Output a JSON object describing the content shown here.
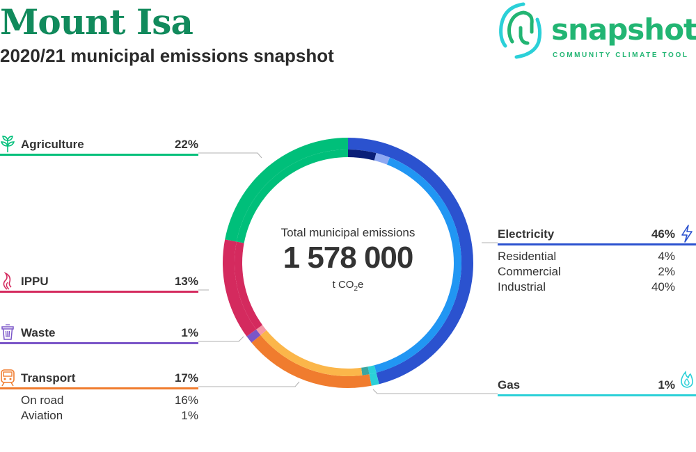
{
  "header": {
    "title": "Mount Isa",
    "subtitle": "2020/21 municipal emissions snapshot"
  },
  "logo": {
    "wordmark": "snapshot",
    "tagline": "COMMUNITY CLIMATE TOOL",
    "color": "#22b573"
  },
  "center": {
    "label": "Total municipal emissions",
    "value": "1 578 000",
    "unit_prefix": "t CO",
    "unit_sub": "2",
    "unit_suffix": "e"
  },
  "categories": {
    "agriculture": {
      "label": "Agriculture",
      "pct": "22%",
      "color": "#00bf7a",
      "icon": "sprout-icon"
    },
    "ippu": {
      "label": "IPPU",
      "pct": "13%",
      "color": "#d42a5e",
      "icon": "flame-swirl-icon"
    },
    "waste": {
      "label": "Waste",
      "pct": "1%",
      "color": "#7b56c8",
      "icon": "trash-bin-icon"
    },
    "transport": {
      "label": "Transport",
      "pct": "17%",
      "color": "#f07c2e",
      "icon": "train-icon",
      "subs": [
        {
          "label": "On road",
          "pct": "16%"
        },
        {
          "label": "Aviation",
          "pct": "1%"
        }
      ]
    },
    "electricity": {
      "label": "Electricity",
      "pct": "46%",
      "color": "#2b52cf",
      "icon": "lightning-icon",
      "subs": [
        {
          "label": "Residential",
          "pct": "4%"
        },
        {
          "label": "Commercial",
          "pct": "2%"
        },
        {
          "label": "Industrial",
          "pct": "40%"
        }
      ]
    },
    "gas": {
      "label": "Gas",
      "pct": "1%",
      "color": "#2bd0d8",
      "icon": "gas-flame-icon"
    }
  },
  "chart_data": {
    "type": "pie",
    "variant": "donut",
    "unit": "t CO2e",
    "total": 1578000,
    "start_angle_deg": 0,
    "direction": "clockwise",
    "segments": [
      {
        "name": "Electricity",
        "value": 46,
        "color": "#2b52cf",
        "sub": [
          {
            "name": "Residential",
            "value": 4,
            "color": "#0a1f78"
          },
          {
            "name": "Commercial",
            "value": 2,
            "color": "#8ea8f2"
          },
          {
            "name": "Industrial",
            "value": 40,
            "color": "#2196f3"
          }
        ]
      },
      {
        "name": "Gas",
        "value": 1,
        "color": "#2bd0d8",
        "sub": [
          {
            "name": "Gas",
            "value": 1,
            "color": "#2bd0d8"
          }
        ]
      },
      {
        "name": "Transport",
        "value": 17,
        "color": "#f07c2e",
        "sub": [
          {
            "name": "Aviation",
            "value": 1,
            "color": "#3aa5a0"
          },
          {
            "name": "On road",
            "value": 16,
            "color": "#fbb64a"
          }
        ]
      },
      {
        "name": "Waste",
        "value": 1,
        "color": "#7b56c8",
        "sub": [
          {
            "name": "Waste",
            "value": 1,
            "color": "#f598a8"
          }
        ]
      },
      {
        "name": "IPPU",
        "value": 13,
        "color": "#d42a5e",
        "sub": [
          {
            "name": "IPPU",
            "value": 13,
            "color": "#d42a5e"
          }
        ]
      },
      {
        "name": "Agriculture",
        "value": 22,
        "color": "#00bf7a",
        "sub": [
          {
            "name": "Agriculture",
            "value": 22,
            "color": "#00bf7a"
          }
        ]
      }
    ]
  }
}
